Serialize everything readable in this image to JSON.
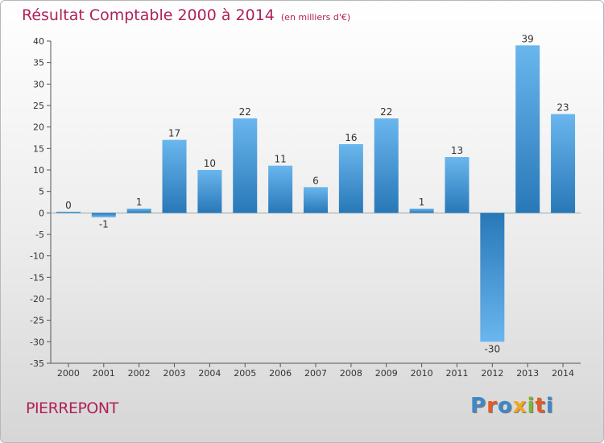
{
  "header": {
    "title": "Résultat Comptable 2000 à 2014",
    "unit": "(en milliers d'€)"
  },
  "footer": {
    "commune": "PIERREPONT",
    "logo": {
      "letters": [
        "P",
        "r",
        "o",
        "x",
        "i",
        "t",
        "i"
      ],
      "colors": [
        "#3e88c8",
        "#e25b2a",
        "#3e88c8",
        "#f2a81d",
        "#7cb63a",
        "#e25b2a",
        "#3e88c8"
      ]
    }
  },
  "chart_data": {
    "type": "bar",
    "title": "Résultat Comptable 2000 à 2014",
    "subtitle": "(en milliers d'€)",
    "categories": [
      "2000",
      "2001",
      "2002",
      "2003",
      "2004",
      "2005",
      "2006",
      "2007",
      "2008",
      "2009",
      "2010",
      "2011",
      "2012",
      "2013",
      "2014"
    ],
    "values": [
      0,
      -1,
      1,
      17,
      10,
      22,
      11,
      6,
      16,
      22,
      1,
      13,
      -30,
      39,
      23
    ],
    "data_labels": [
      "0",
      "-1",
      "1",
      "17",
      "10",
      "22",
      "11",
      "6",
      "16",
      "22",
      "1",
      "13",
      "-30",
      "39",
      "23"
    ],
    "ylim": [
      -35,
      40
    ],
    "yticks": [
      40,
      35,
      30,
      25,
      20,
      15,
      10,
      5,
      0,
      -5,
      -10,
      -15,
      -20,
      -25,
      -30,
      -35
    ],
    "ytick_labels": [
      "40",
      "35",
      "30",
      "25",
      "20",
      "15",
      "10",
      "5",
      "0",
      "-5",
      "-10",
      "-15",
      "-20",
      "-25",
      "-30",
      "-35"
    ],
    "grid": false,
    "colors": {
      "bar_dark": "#2878b8",
      "bar_light": "#6ab6ee",
      "axis": "#555555"
    }
  }
}
